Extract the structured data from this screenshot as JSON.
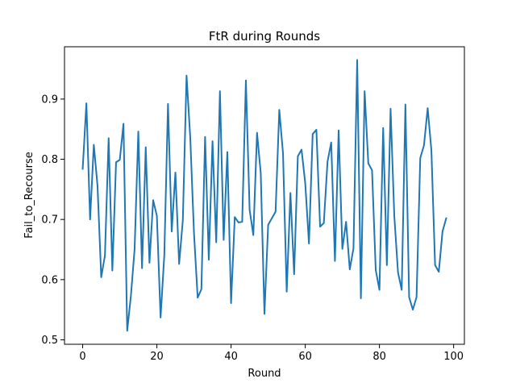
{
  "chart_data": {
    "type": "line",
    "title": "FtR during Rounds",
    "xlabel": "Round",
    "ylabel": "Fail_to_Recourse",
    "xlim": [
      -4.9,
      102.9
    ],
    "ylim": [
      0.4926,
      0.9869
    ],
    "xticks": [
      0,
      20,
      40,
      60,
      80,
      100
    ],
    "xtick_labels": [
      "0",
      "20",
      "40",
      "60",
      "80",
      "100"
    ],
    "yticks": [
      0.5,
      0.6,
      0.7,
      0.8,
      0.9
    ],
    "ytick_labels": [
      "0.5",
      "0.6",
      "0.7",
      "0.8",
      "0.9"
    ],
    "grid": false,
    "series": [
      {
        "color": "#1f77b4",
        "x": [
          0,
          1,
          2,
          3,
          4,
          5,
          6,
          7,
          8,
          9,
          10,
          11,
          12,
          13,
          14,
          15,
          16,
          17,
          18,
          19,
          20,
          21,
          22,
          23,
          24,
          25,
          26,
          27,
          28,
          29,
          30,
          31,
          32,
          33,
          34,
          35,
          36,
          37,
          38,
          39,
          40,
          41,
          42,
          43,
          44,
          45,
          46,
          47,
          48,
          49,
          50,
          51,
          52,
          53,
          54,
          55,
          56,
          57,
          58,
          59,
          60,
          61,
          62,
          63,
          64,
          65,
          66,
          67,
          68,
          69,
          70,
          71,
          72,
          73,
          74,
          75,
          76,
          77,
          78,
          79,
          80,
          81,
          82,
          83,
          84,
          85,
          86,
          87,
          88,
          89,
          90,
          91,
          92,
          93,
          94,
          95,
          96,
          97,
          98
        ],
        "values": [
          0.784,
          0.893,
          0.7,
          0.824,
          0.756,
          0.604,
          0.64,
          0.835,
          0.615,
          0.795,
          0.799,
          0.859,
          0.515,
          0.573,
          0.651,
          0.846,
          0.619,
          0.82,
          0.628,
          0.732,
          0.706,
          0.537,
          0.64,
          0.892,
          0.68,
          0.778,
          0.626,
          0.699,
          0.939,
          0.836,
          0.678,
          0.57,
          0.584,
          0.837,
          0.633,
          0.83,
          0.662,
          0.913,
          0.666,
          0.812,
          0.561,
          0.704,
          0.695,
          0.696,
          0.931,
          0.716,
          0.674,
          0.844,
          0.777,
          0.543,
          0.691,
          0.702,
          0.713,
          0.882,
          0.81,
          0.58,
          0.744,
          0.609,
          0.805,
          0.816,
          0.76,
          0.66,
          0.842,
          0.849,
          0.688,
          0.694,
          0.796,
          0.828,
          0.631,
          0.848,
          0.651,
          0.696,
          0.617,
          0.652,
          0.965,
          0.569,
          0.913,
          0.793,
          0.782,
          0.616,
          0.583,
          0.852,
          0.624,
          0.884,
          0.706,
          0.612,
          0.583,
          0.891,
          0.571,
          0.55,
          0.571,
          0.802,
          0.823,
          0.885,
          0.815,
          0.624,
          0.613,
          0.68,
          0.702
        ]
      }
    ]
  }
}
